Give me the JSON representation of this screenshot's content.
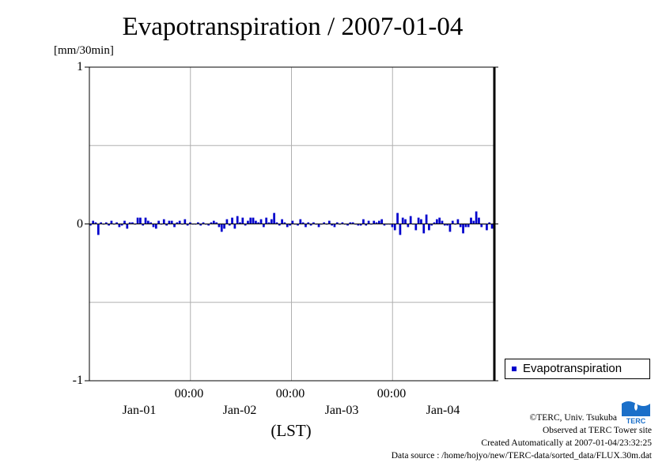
{
  "chart_data": {
    "type": "bar",
    "title": "Evapotranspiration / 2007-01-04",
    "ylabel": "[mm/30min]",
    "ylim": [
      -1,
      1
    ],
    "yticks": [
      "1",
      "0",
      "-1"
    ],
    "ytick_values": [
      1,
      0,
      -1
    ],
    "grid": true,
    "x_time_ticks": [
      "00:00",
      "00:00",
      "00:00"
    ],
    "x_date_labels": [
      "Jan-01",
      "Jan-02",
      "Jan-03",
      "Jan-04"
    ],
    "xlabel": "(LST)",
    "legend": {
      "label": "Evapotranspiration",
      "placement": "bottom-right"
    },
    "series": [
      {
        "name": "Evapotranspiration",
        "color": "#0000cc",
        "values": [
          -0.01,
          0.02,
          0.01,
          -0.07,
          0.01,
          0.0,
          0.01,
          -0.01,
          0.02,
          0.0,
          0.01,
          -0.02,
          -0.01,
          0.02,
          -0.03,
          0.01,
          0.01,
          0.0,
          0.04,
          0.04,
          -0.01,
          0.04,
          0.02,
          0.01,
          -0.02,
          -0.03,
          0.02,
          0.0,
          0.03,
          -0.01,
          0.02,
          0.02,
          -0.02,
          0.01,
          0.02,
          0.0,
          0.03,
          -0.01,
          0.01,
          0.0,
          0.0,
          0.01,
          -0.01,
          0.01,
          0.0,
          -0.01,
          0.01,
          0.02,
          0.01,
          -0.02,
          -0.05,
          -0.03,
          0.03,
          -0.01,
          0.04,
          -0.03,
          0.05,
          0.01,
          0.04,
          -0.01,
          0.02,
          0.04,
          0.04,
          0.02,
          0.01,
          0.03,
          -0.02,
          0.04,
          0.01,
          0.03,
          0.07,
          0.01,
          -0.01,
          0.03,
          0.01,
          -0.02,
          -0.01,
          0.02,
          0.0,
          -0.01,
          0.03,
          0.01,
          -0.02,
          0.01,
          -0.01,
          0.01,
          0.0,
          -0.02,
          0.0,
          0.01,
          0.0,
          0.02,
          -0.01,
          -0.02,
          0.01,
          0.0,
          0.01,
          0.0,
          -0.01,
          0.01,
          0.01,
          0.0,
          -0.01,
          -0.01,
          0.03,
          -0.01,
          0.02,
          0.0,
          0.02,
          0.01,
          0.02,
          0.03,
          -0.01,
          0.0,
          0.0,
          -0.02,
          -0.04,
          0.07,
          -0.07,
          0.04,
          0.03,
          -0.02,
          0.05,
          0.0,
          -0.04,
          0.04,
          0.03,
          -0.06,
          0.06,
          -0.04,
          -0.01,
          0.01,
          0.03,
          0.04,
          0.02,
          -0.01,
          -0.01,
          -0.05,
          0.02,
          0.0,
          0.03,
          -0.02,
          -0.06,
          -0.02,
          -0.02,
          0.04,
          0.02,
          0.08,
          0.04,
          -0.02,
          0.0,
          -0.04,
          0.01,
          -0.03
        ]
      }
    ]
  },
  "credits": {
    "copyright": "©TERC, Univ. Tsukuba",
    "site": "Observed at TERC Tower site",
    "created": "Created Automatically at 2007-01-04/23:32:25",
    "source": "Data source : /home/hojyo/new/TERC-data/sorted_data/FLUX.30m.dat"
  },
  "logo": {
    "text": "TERC",
    "color": "#1a6fc9"
  }
}
